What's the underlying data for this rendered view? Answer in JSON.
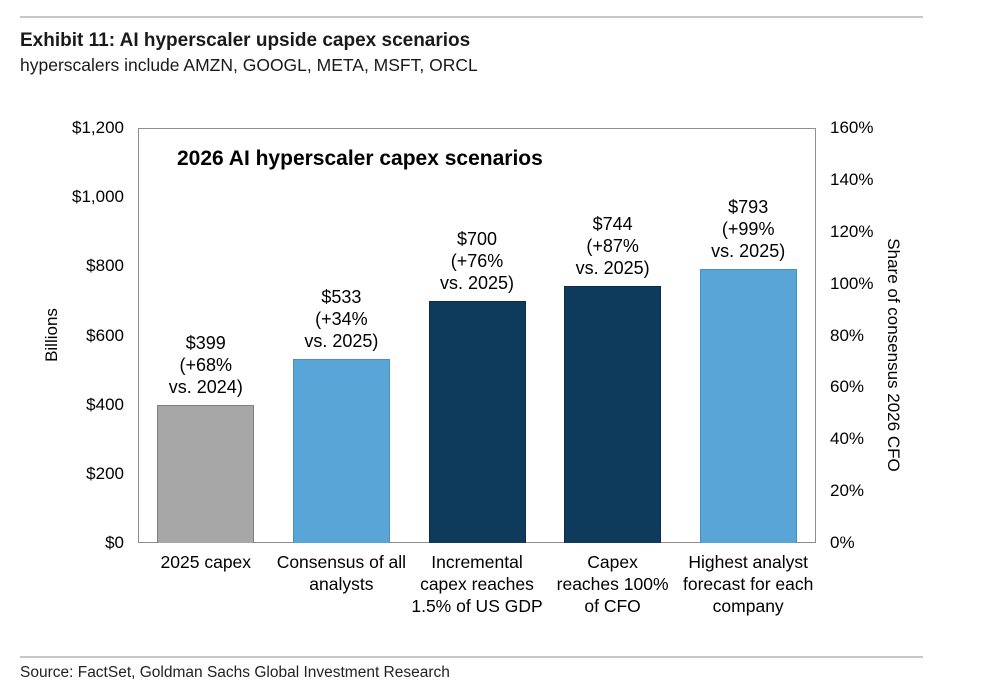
{
  "header": {
    "exhibit_title": "Exhibit 11: AI hyperscaler upside capex scenarios",
    "subtitle": "hyperscalers include AMZN, GOOGL, META, MSFT, ORCL"
  },
  "footer": {
    "source": "Source: FactSet, Goldman Sachs Global Investment Research"
  },
  "colors": {
    "gray_bar": "#a7a7a7",
    "gray_bar_border": "#7f7f7f",
    "light_blue_bar": "#5aa5d8",
    "light_blue_bar_border": "#4a8fc2",
    "navy_bar": "#0e3a5c",
    "navy_bar_border": "#0a2e4a",
    "frame": "#8e8e8e",
    "rule": "#c8c8c8"
  },
  "chart_data": {
    "type": "bar",
    "title": "2026 AI hyperscaler capex scenarios",
    "left_axis": {
      "label": "Billions",
      "ticks": [
        "$1,200",
        "$1,000",
        "$800",
        "$600",
        "$400",
        "$200",
        "$0"
      ],
      "range": [
        0,
        1200
      ]
    },
    "right_axis": {
      "label": "Share of consensus 2026 CFO",
      "ticks": [
        "160%",
        "140%",
        "120%",
        "100%",
        "80%",
        "60%",
        "40%",
        "20%",
        "0%"
      ],
      "range": [
        0,
        160
      ]
    },
    "grid": false,
    "legend": "none",
    "categories": [
      "2025 capex",
      "Consensus of all analysts",
      "Incremental capex reaches 1.5% of US GDP",
      "Capex reaches 100% of CFO",
      "Highest analyst forecast for each company"
    ],
    "values": [
      399,
      533,
      700,
      744,
      793
    ],
    "bars": [
      {
        "category_lines": [
          "2025 capex"
        ],
        "value": 399,
        "annotation_lines": [
          "$399",
          "(+68%",
          "vs. 2024)"
        ],
        "color_key": "gray"
      },
      {
        "category_lines": [
          "Consensus of all",
          "analysts"
        ],
        "value": 533,
        "annotation_lines": [
          "$533",
          "(+34%",
          "vs. 2025)"
        ],
        "color_key": "light_blue"
      },
      {
        "category_lines": [
          "Incremental",
          "capex reaches",
          "1.5% of US GDP"
        ],
        "value": 700,
        "annotation_lines": [
          "$700",
          "(+76%",
          "vs. 2025)"
        ],
        "color_key": "navy"
      },
      {
        "category_lines": [
          "Capex",
          "reaches 100%",
          "of CFO"
        ],
        "value": 744,
        "annotation_lines": [
          "$744",
          "(+87%",
          "vs. 2025)"
        ],
        "color_key": "navy"
      },
      {
        "category_lines": [
          "Highest analyst",
          "forecast for each",
          "company"
        ],
        "value": 793,
        "annotation_lines": [
          "$793",
          "(+99%",
          "vs. 2025)"
        ],
        "color_key": "light_blue"
      }
    ]
  }
}
